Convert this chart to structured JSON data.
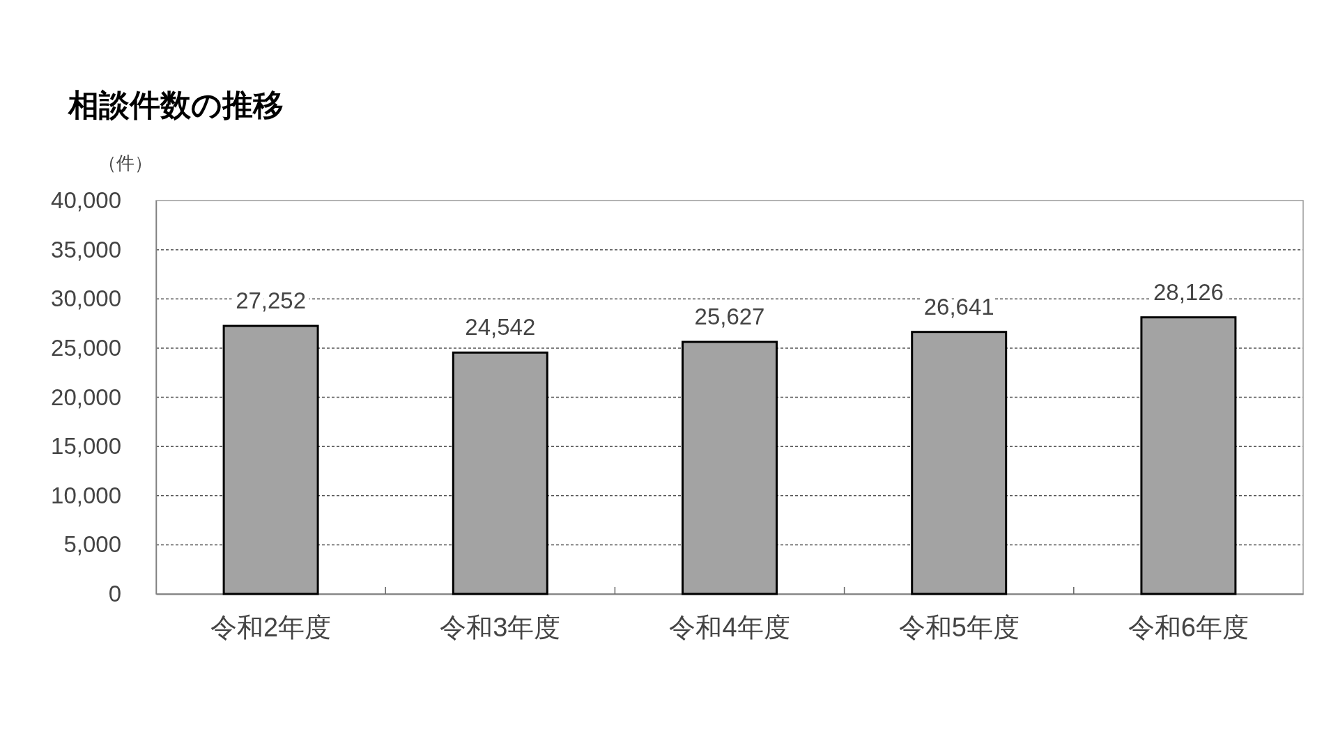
{
  "chart_data": {
    "type": "bar",
    "title": "相談件数の推移",
    "ylabel": "（件）",
    "categories": [
      "令和2年度",
      "令和3年度",
      "令和4年度",
      "令和5年度",
      "令和6年度"
    ],
    "values": [
      27252,
      24542,
      25627,
      26641,
      28126
    ],
    "value_labels": [
      "27,252",
      "24,542",
      "25,627",
      "26,641",
      "28,126"
    ],
    "color": "#a3a3a3",
    "ylim": [
      0,
      40000
    ],
    "yticks": [
      {
        "value": 0,
        "label": "0"
      },
      {
        "value": 5000,
        "label": "5,000"
      },
      {
        "value": 10000,
        "label": "10,000"
      },
      {
        "value": 15000,
        "label": "15,000"
      },
      {
        "value": 20000,
        "label": "20,000"
      },
      {
        "value": 25000,
        "label": "25,000"
      },
      {
        "value": 30000,
        "label": "30,000"
      },
      {
        "value": 35000,
        "label": "35,000"
      },
      {
        "value": 40000,
        "label": "40,000"
      }
    ],
    "grid": "y"
  }
}
